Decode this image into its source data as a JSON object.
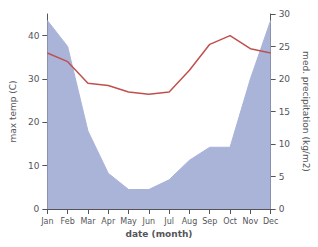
{
  "chart_data": {
    "type": "line",
    "xlabel": "date (month)",
    "ylabel": "max temp (C)",
    "y2label": "med. precipitation (kg/m2)",
    "categories": [
      "Jan",
      "Feb",
      "Mar",
      "Apr",
      "May",
      "Jun",
      "Jul",
      "Aug",
      "Sep",
      "Oct",
      "Nov",
      "Dec"
    ],
    "series": [
      {
        "type": "area",
        "axis": "y2",
        "color": "#aab4d8",
        "values": [
          29.0,
          25.0,
          12.0,
          5.5,
          3.0,
          3.0,
          4.5,
          7.5,
          9.5,
          9.5,
          20.0,
          29.0
        ]
      },
      {
        "type": "line",
        "color": "#c0504d",
        "values": [
          36.0,
          34.0,
          29.0,
          28.5,
          27.0,
          26.5,
          27.0,
          32.0,
          38.0,
          40.0,
          37.0,
          36.0
        ]
      }
    ],
    "ylim": [
      0,
      45
    ],
    "yticks": [
      0,
      10,
      20,
      30,
      40
    ],
    "y2lim": [
      0,
      30
    ],
    "y2ticks": [
      0,
      5,
      10,
      15,
      20,
      25,
      30
    ],
    "grid": false
  }
}
